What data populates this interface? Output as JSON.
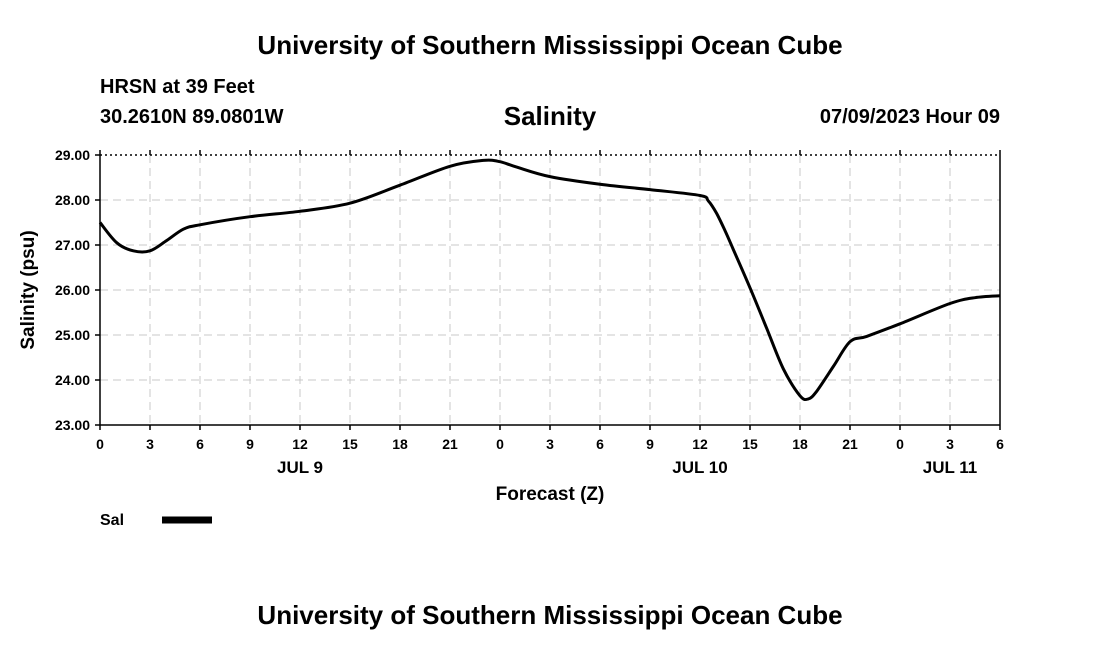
{
  "header": {
    "title": "University of Southern Mississippi Ocean Cube",
    "station": "HRSN at 39 Feet",
    "coords": "30.2610N  89.0801W",
    "chart_title": "Salinity",
    "issued": "07/09/2023 Hour 09"
  },
  "footer": {
    "title": "University of Southern Mississippi Ocean Cube"
  },
  "chart_data": {
    "type": "line",
    "title": "Salinity",
    "xlabel": "Forecast (Z)",
    "ylabel": "Salinity (psu)",
    "ylim": [
      23.0,
      29.0
    ],
    "y_ticks": [
      "23.00",
      "24.00",
      "25.00",
      "26.00",
      "27.00",
      "28.00",
      "29.00"
    ],
    "x_range_hours": [
      0,
      54
    ],
    "x_tick_labels": [
      "0",
      "3",
      "6",
      "9",
      "12",
      "15",
      "18",
      "21",
      "0",
      "3",
      "6",
      "9",
      "12",
      "15",
      "18",
      "21",
      "0",
      "3",
      "6"
    ],
    "date_labels": [
      {
        "label": "JUL 9",
        "hour": 12
      },
      {
        "label": "JUL 10",
        "hour": 36
      },
      {
        "label": "JUL 11",
        "hour": 51
      }
    ],
    "grid": true,
    "legend_position": "bottom-left",
    "series": [
      {
        "name": "Sal",
        "color": "#000000",
        "x": [
          0,
          1,
          2,
          3,
          4,
          5,
          6,
          9,
          12,
          15,
          18,
          21,
          23,
          24,
          25,
          27,
          30,
          33,
          36,
          36.5,
          37,
          37.5,
          38,
          39,
          40,
          41,
          42,
          42.5,
          43,
          44,
          45,
          46,
          48,
          51,
          52.5,
          54
        ],
        "y": [
          27.5,
          27.05,
          26.87,
          26.87,
          27.1,
          27.35,
          27.45,
          27.63,
          27.75,
          27.93,
          28.33,
          28.75,
          28.88,
          28.85,
          28.73,
          28.52,
          28.35,
          28.23,
          28.1,
          27.98,
          27.7,
          27.32,
          26.9,
          26.05,
          25.15,
          24.25,
          23.65,
          23.58,
          23.75,
          24.3,
          24.85,
          24.97,
          25.25,
          25.7,
          25.83,
          25.87
        ]
      }
    ]
  }
}
